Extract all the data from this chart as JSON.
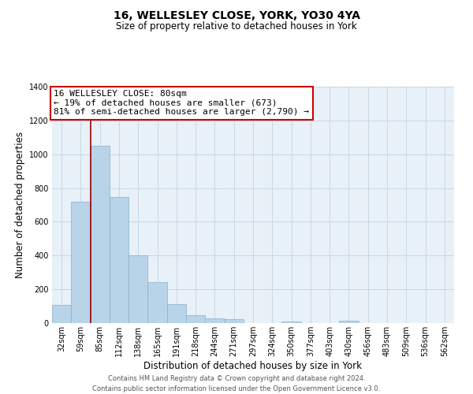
{
  "title": "16, WELLESLEY CLOSE, YORK, YO30 4YA",
  "subtitle": "Size of property relative to detached houses in York",
  "xlabel": "Distribution of detached houses by size in York",
  "ylabel": "Number of detached properties",
  "bar_color": "#b8d4e8",
  "bar_edge_color": "#8ab0cc",
  "categories": [
    "32sqm",
    "59sqm",
    "85sqm",
    "112sqm",
    "138sqm",
    "165sqm",
    "191sqm",
    "218sqm",
    "244sqm",
    "271sqm",
    "297sqm",
    "324sqm",
    "350sqm",
    "377sqm",
    "403sqm",
    "430sqm",
    "456sqm",
    "483sqm",
    "509sqm",
    "536sqm",
    "562sqm"
  ],
  "values": [
    107,
    720,
    1050,
    748,
    400,
    244,
    110,
    48,
    28,
    22,
    0,
    0,
    10,
    0,
    0,
    15,
    0,
    0,
    0,
    0,
    0
  ],
  "ylim": [
    0,
    1400
  ],
  "yticks": [
    0,
    200,
    400,
    600,
    800,
    1000,
    1200,
    1400
  ],
  "property_line_color": "#990000",
  "property_line_x": 1.5,
  "annotation_text": "16 WELLESLEY CLOSE: 80sqm\n← 19% of detached houses are smaller (673)\n81% of semi-detached houses are larger (2,790) →",
  "annotation_box_facecolor": "#ffffff",
  "annotation_box_edgecolor": "#cc0000",
  "footer": "Contains HM Land Registry data © Crown copyright and database right 2024.\nContains public sector information licensed under the Open Government Licence v3.0.",
  "background_color": "#ffffff",
  "plot_bg_color": "#e8f0f8",
  "grid_color": "#c8d8e8",
  "title_fontsize": 10,
  "subtitle_fontsize": 8.5,
  "xlabel_fontsize": 8.5,
  "ylabel_fontsize": 8.5,
  "tick_fontsize": 7,
  "footer_fontsize": 6,
  "annotation_fontsize": 8
}
